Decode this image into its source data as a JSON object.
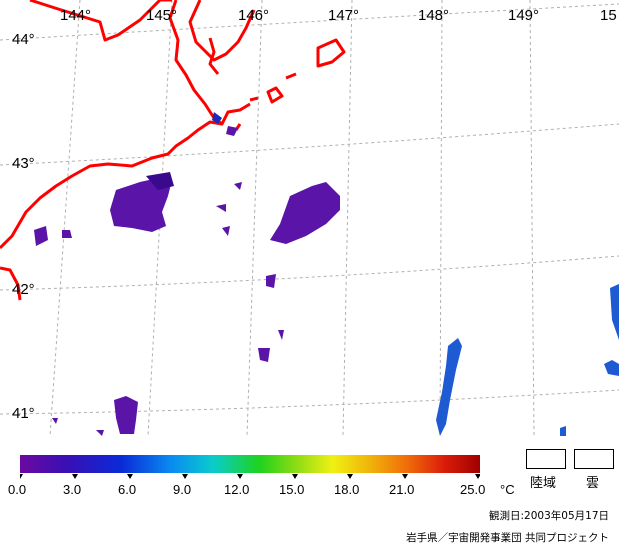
{
  "map": {
    "longitude_labels": [
      "144°",
      "145°",
      "146°",
      "147°",
      "148°",
      "149°",
      "15"
    ],
    "latitude_labels": [
      "44°",
      "43°",
      "42°",
      "41°"
    ],
    "colors": {
      "coastline": "#ff0000",
      "grid": "#b0b0b0",
      "sst_patch": "#5a14a8",
      "sst_patch_dark": "#3a0a8c",
      "sst_patch_blue": "#1e5ad2"
    }
  },
  "legend": {
    "tick_labels": [
      "0.0",
      "3.0",
      "6.0",
      "9.0",
      "12.0",
      "15.0",
      "18.0",
      "21.0",
      "25.0"
    ],
    "unit": "°C",
    "land_label": "陸域",
    "cloud_label": "雲",
    "observation_date": "観測日:2003年05月17日",
    "credit": "岩手県／宇宙開発事業団 共同プロジェクト"
  }
}
